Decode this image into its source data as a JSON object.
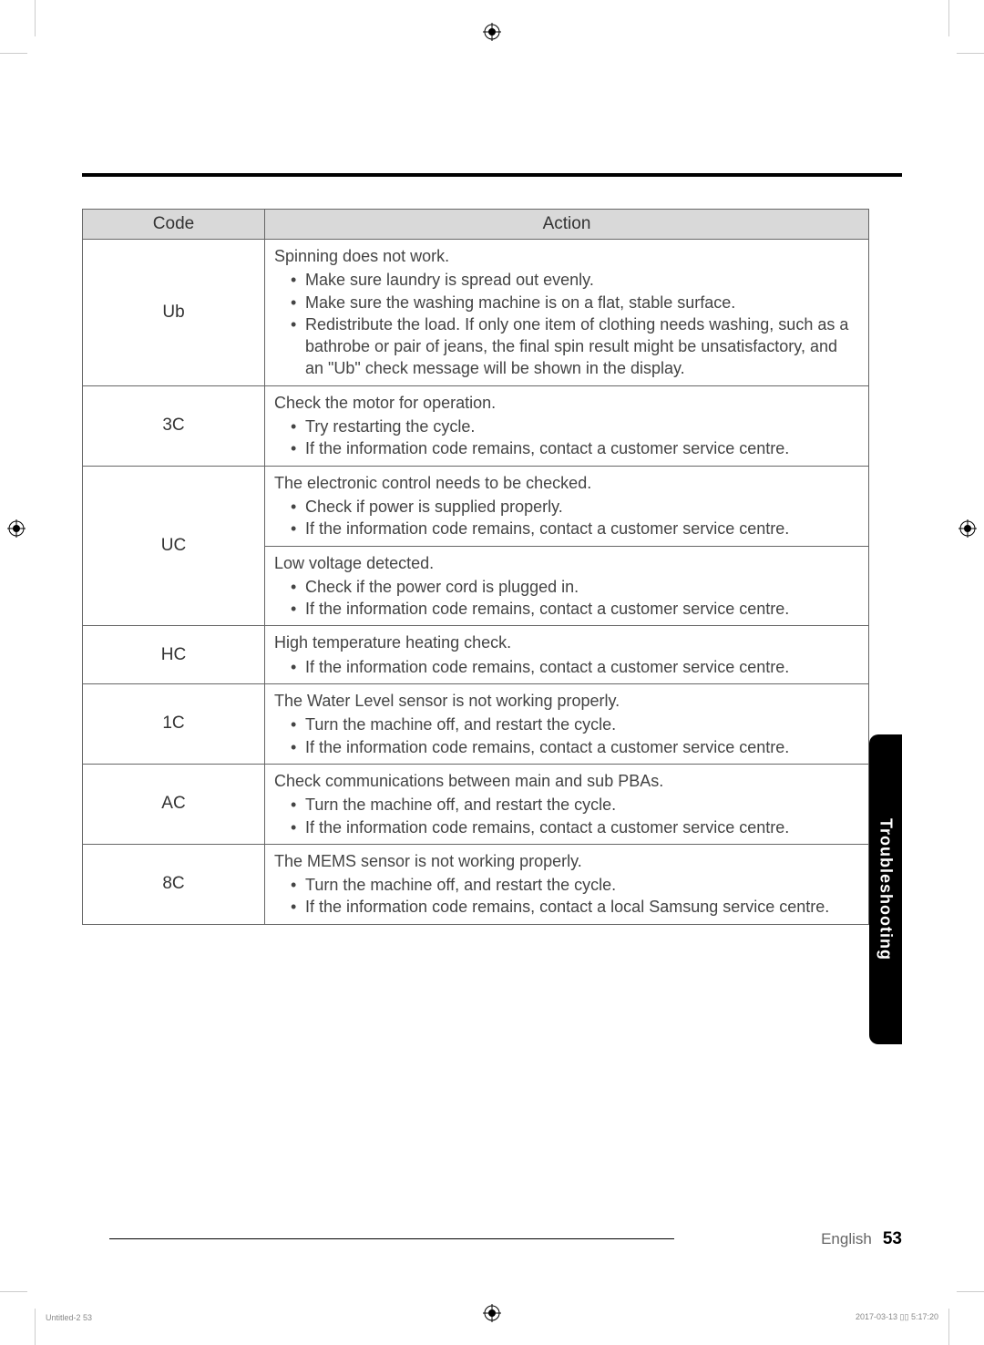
{
  "registration_color": "#000000",
  "table": {
    "header_code": "Code",
    "header_action": "Action",
    "header_bg": "#d9d9d9",
    "border_color": "#666666",
    "rows": [
      {
        "code": "Ub",
        "rowspan": 1,
        "header": "Spinning does not work.",
        "bullets": [
          "Make sure laundry is spread out evenly.",
          "Make sure the washing machine is on a flat, stable surface.",
          "Redistribute the load. If only one item of clothing needs washing, such as a bathrobe or pair of jeans, the final spin result might be unsatisfactory, and an \"Ub\" check message will be shown in the display."
        ]
      },
      {
        "code": "3C",
        "rowspan": 1,
        "header": "Check the motor for operation.",
        "bullets": [
          "Try restarting the cycle.",
          "If the information code remains, contact a customer service centre."
        ]
      },
      {
        "code": "UC",
        "rowspan": 2,
        "header": "The electronic control needs to be checked.",
        "bullets": [
          "Check if power is supplied properly.",
          "If the information code remains, contact a customer service centre."
        ]
      },
      {
        "code": "",
        "rowspan": 0,
        "header": "Low voltage detected.",
        "bullets": [
          "Check if the power cord is plugged in.",
          "If the information code remains, contact a customer service centre."
        ]
      },
      {
        "code": "HC",
        "rowspan": 1,
        "header": "High temperature heating check.",
        "bullets": [
          "If the information code remains, contact a customer service centre."
        ]
      },
      {
        "code": "1C",
        "rowspan": 1,
        "header": "The Water Level sensor is not working properly.",
        "bullets": [
          "Turn the machine off, and restart the cycle.",
          "If the information code remains, contact a customer service centre."
        ]
      },
      {
        "code": "AC",
        "rowspan": 1,
        "header": "Check communications between main and sub PBAs.",
        "bullets": [
          "Turn the machine off, and restart the cycle.",
          "If the information code remains, contact a customer service centre."
        ]
      },
      {
        "code": "8C",
        "rowspan": 1,
        "header": "The MEMS sensor is not working properly.",
        "bullets": [
          "Turn the machine off, and restart the cycle.",
          "If the information code remains, contact a local Samsung service centre."
        ]
      }
    ]
  },
  "side_tab": {
    "label": "Troubleshooting",
    "bg": "#000000",
    "text_color": "#ffffff"
  },
  "footer": {
    "language": "English",
    "page_number": "53"
  },
  "print_marks": {
    "left_text": "Untitled-2   53",
    "right_text": "2017-03-13   ▯▯ 5:17:20"
  }
}
